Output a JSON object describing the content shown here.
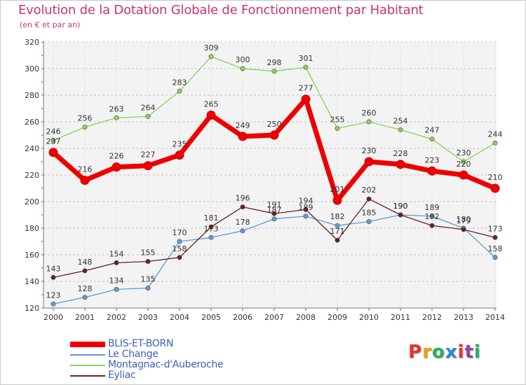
{
  "header": {
    "title": "Evolution de la Dotation Globale de Fonctionnement par Habitant",
    "subtitle": "(en € et par an)"
  },
  "logo": {
    "text": "Proxiti",
    "colors": [
      "#e8342b",
      "#f39c12",
      "#27ae60",
      "#2e86de",
      "#e8342b",
      "#8e44ad",
      "#27ae60"
    ]
  },
  "chart_data": {
    "type": "line",
    "title": "Evolution de la Dotation Globale de Fonctionnement par Habitant",
    "subtitle": "(en € et par an)",
    "xlabel": "",
    "ylabel": "",
    "x": [
      "2000",
      "2001",
      "2002",
      "2003",
      "2004",
      "2005",
      "2006",
      "2007",
      "2008",
      "2009",
      "2010",
      "2011",
      "2012",
      "2013",
      "2014"
    ],
    "ylim": [
      120,
      320
    ],
    "yticks": [
      120,
      140,
      160,
      180,
      200,
      220,
      240,
      260,
      280,
      300,
      320
    ],
    "grid": "horizontal",
    "legend_position": "bottom-left",
    "series": [
      {
        "name": "BLIS-ET-BORN",
        "color": "#ee0000",
        "values": [
          237,
          216,
          226,
          227,
          235,
          265,
          249,
          250,
          277,
          201,
          230,
          228,
          223,
          220,
          210
        ]
      },
      {
        "name": "Le Change",
        "color": "#5b9bd5",
        "values": [
          123,
          128,
          134,
          135,
          170,
          173,
          178,
          187,
          189,
          182,
          185,
          190,
          189,
          180,
          158
        ]
      },
      {
        "name": "Montagnac-d'Auberoche",
        "color": "#88d15a",
        "values": [
          246,
          256,
          263,
          264,
          283,
          309,
          300,
          298,
          301,
          255,
          260,
          254,
          247,
          230,
          244
        ]
      },
      {
        "name": "Eyliac",
        "color": "#6b1e22",
        "values": [
          143,
          148,
          154,
          155,
          158,
          181,
          196,
          191,
          194,
          171,
          202,
          190,
          182,
          179,
          173
        ]
      }
    ]
  }
}
